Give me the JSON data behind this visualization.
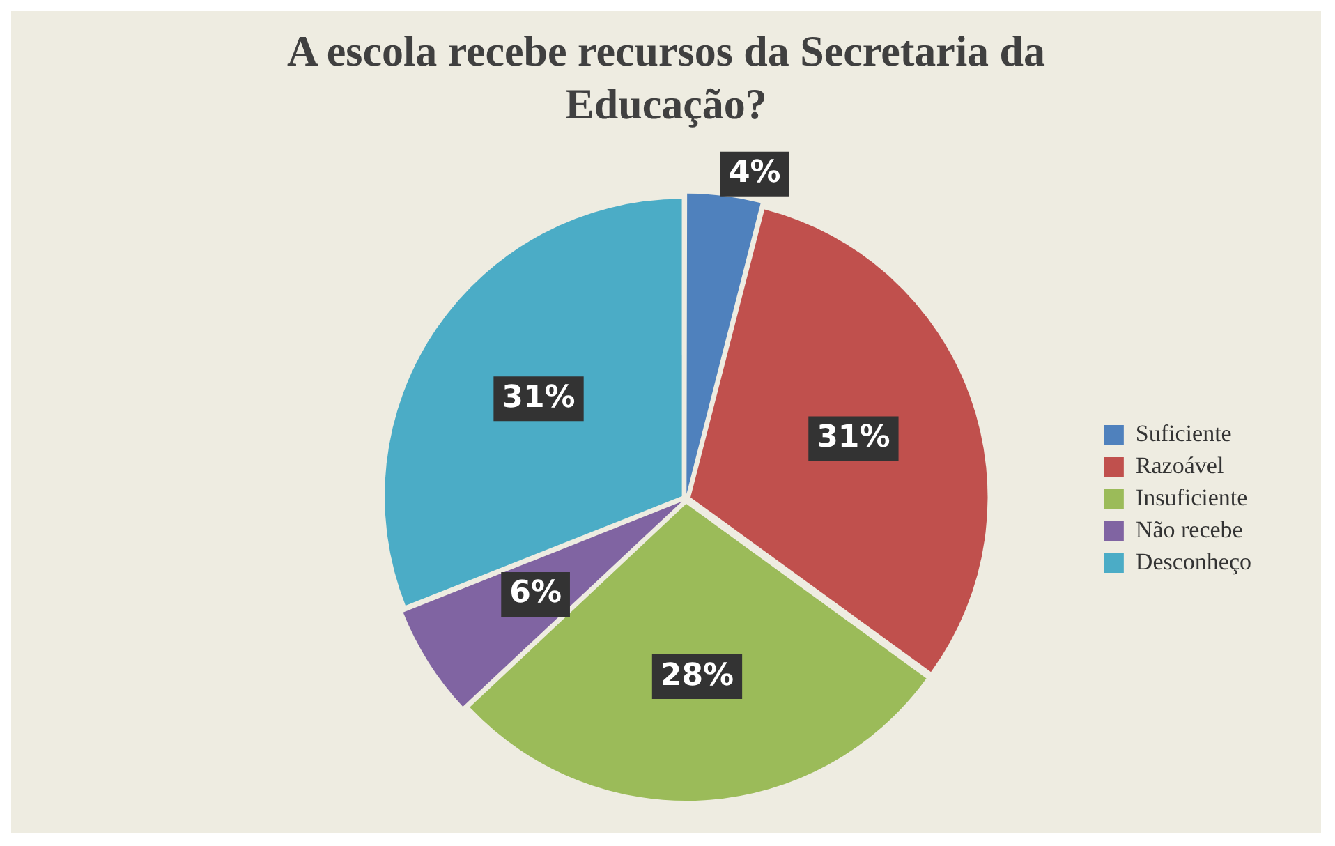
{
  "chart_data": {
    "type": "pie",
    "title": "A escola recebe recursos da Secretaria da Educação?",
    "categories": [
      "Suficiente",
      "Razoável",
      "Insuficiente",
      "Não recebe",
      "Desconheço"
    ],
    "values": [
      4,
      31,
      28,
      6,
      31
    ],
    "colors": [
      "#4f81bd",
      "#c0504d",
      "#9bbb59",
      "#8064a2",
      "#4bacc6"
    ],
    "value_labels": [
      "4%",
      "31%",
      "28%",
      "6%",
      "31%"
    ],
    "legend": "right"
  }
}
